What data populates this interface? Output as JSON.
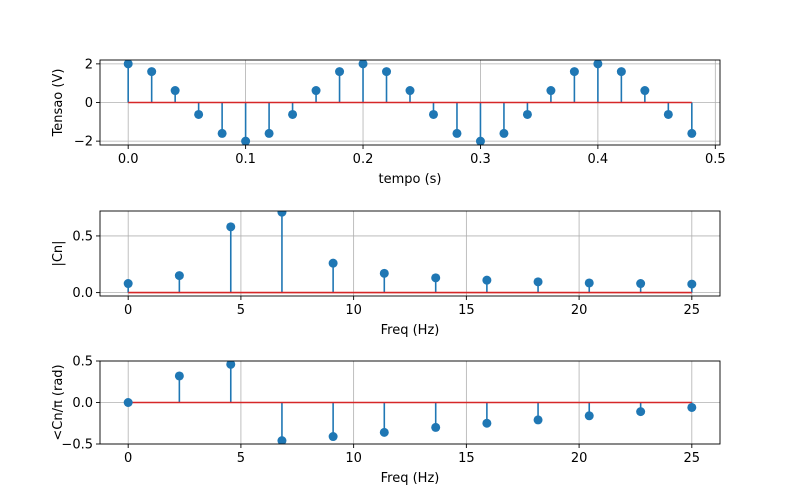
{
  "chart_data": [
    {
      "type": "stem",
      "xlabel": "tempo (s)",
      "ylabel": "Tensao (V)",
      "xlim": [
        -0.024,
        0.504
      ],
      "ylim": [
        -2.2,
        2.2
      ],
      "xticks": [
        0.0,
        0.1,
        0.2,
        0.3,
        0.4,
        0.5
      ],
      "xtick_labels": [
        "0.0",
        "0.1",
        "0.2",
        "0.3",
        "0.4",
        "0.5"
      ],
      "yticks": [
        -2,
        0,
        2
      ],
      "ytick_labels": [
        "−2",
        "0",
        "2"
      ],
      "grid": true,
      "baseline": 0,
      "marker_color": "#1f77b4",
      "baseline_color": "#d62728",
      "x": [
        0.0,
        0.02,
        0.04,
        0.06,
        0.08,
        0.1,
        0.12,
        0.14,
        0.16,
        0.18,
        0.2,
        0.22,
        0.24,
        0.26,
        0.28,
        0.3,
        0.32,
        0.34,
        0.36,
        0.38,
        0.4,
        0.42,
        0.44,
        0.46,
        0.48
      ],
      "y": [
        2.0,
        1.6,
        0.62,
        -0.62,
        -1.6,
        -2.0,
        -1.6,
        -0.62,
        0.62,
        1.6,
        2.0,
        1.6,
        0.62,
        -0.62,
        -1.6,
        -2.0,
        -1.6,
        -0.62,
        0.62,
        1.6,
        2.0,
        1.6,
        0.62,
        -0.62,
        -1.6
      ]
    },
    {
      "type": "stem",
      "xlabel": "Freq (Hz)",
      "ylabel": "|Cn|",
      "xlim": [
        -1.25,
        26.25
      ],
      "ylim": [
        -0.03,
        0.72
      ],
      "xticks": [
        0,
        5,
        10,
        15,
        20,
        25
      ],
      "xtick_labels": [
        "0",
        "5",
        "10",
        "15",
        "20",
        "25"
      ],
      "yticks": [
        0.0,
        0.5
      ],
      "ytick_labels": [
        "0.0",
        "0.5"
      ],
      "grid": true,
      "baseline": 0,
      "marker_color": "#1f77b4",
      "baseline_color": "#d62728",
      "x": [
        0,
        2.27,
        4.55,
        6.82,
        9.09,
        11.36,
        13.64,
        15.91,
        18.18,
        20.45,
        22.73,
        25.0
      ],
      "y": [
        0.08,
        0.15,
        0.58,
        0.71,
        0.26,
        0.17,
        0.13,
        0.11,
        0.095,
        0.085,
        0.08,
        0.075
      ]
    },
    {
      "type": "stem",
      "xlabel": "Freq (Hz)",
      "ylabel": "<Cn/π (rad)",
      "xlim": [
        -1.25,
        26.25
      ],
      "ylim": [
        -0.5,
        0.5
      ],
      "xticks": [
        0,
        5,
        10,
        15,
        20,
        25
      ],
      "xtick_labels": [
        "0",
        "5",
        "10",
        "15",
        "20",
        "25"
      ],
      "yticks": [
        -0.5,
        0.0,
        0.5
      ],
      "ytick_labels": [
        "−0.5",
        "0.0",
        "0.5"
      ],
      "grid": true,
      "baseline": 0,
      "marker_color": "#1f77b4",
      "baseline_color": "#d62728",
      "x": [
        0,
        2.27,
        4.55,
        6.82,
        9.09,
        11.36,
        13.64,
        15.91,
        18.18,
        20.45,
        22.73,
        25.0
      ],
      "y": [
        0.0,
        0.32,
        0.46,
        -0.46,
        -0.41,
        -0.36,
        -0.3,
        -0.25,
        -0.21,
        -0.16,
        -0.11,
        -0.06
      ]
    }
  ]
}
